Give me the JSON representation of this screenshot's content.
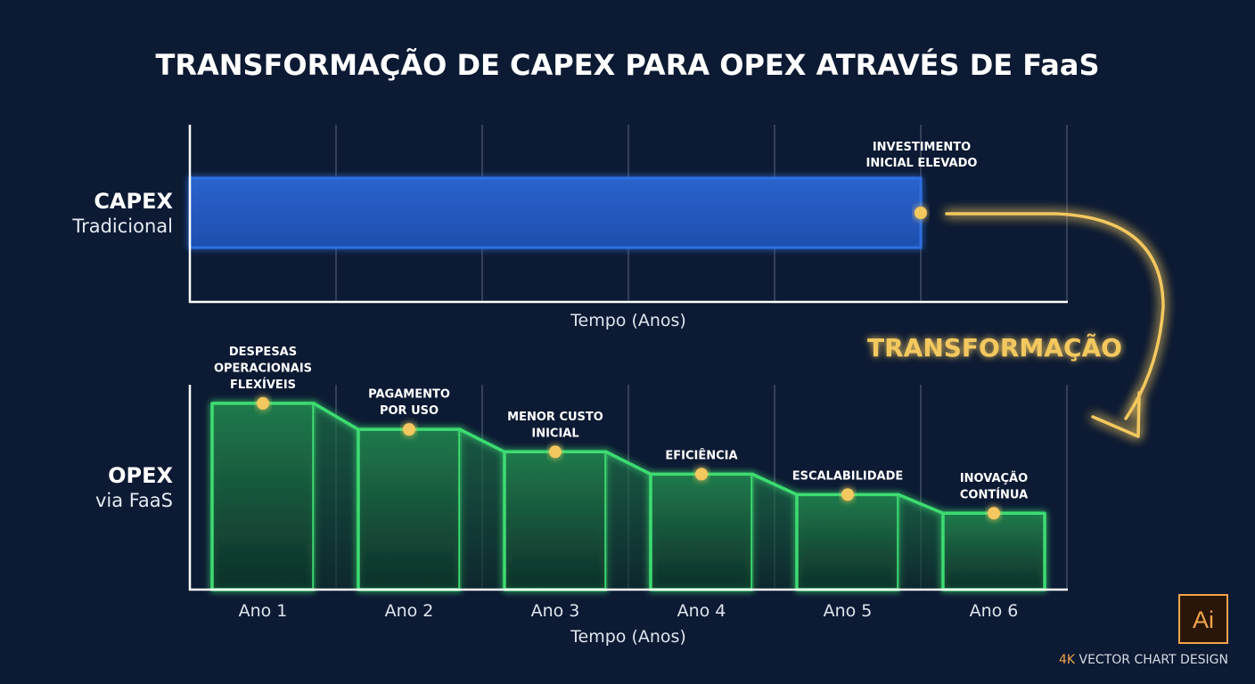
{
  "title": "TRANSFORMAÇÃO DE CAPEX PARA OPEX ATRAVÉS DE FaaS",
  "capex": {
    "label_main": "CAPEX",
    "label_sub": "Tradicional",
    "annotation": [
      "INVESTIMENTO",
      "INICIAL ELEVADO"
    ],
    "xlabel": "Tempo (Anos)"
  },
  "transformation_label": "TRANSFORMAÇÃO",
  "opex": {
    "label_main": "OPEX",
    "label_sub": "via FaaS",
    "xlabel": "Tempo (Anos)"
  },
  "footer": {
    "accent": "4K",
    "text": " VECTOR CHART DESIGN",
    "logo_text": "Ai"
  },
  "colors": {
    "background": "#0c1a33",
    "capex_bar": "#2f6fe0",
    "opex_step": "#3ddc72",
    "highlight": "#f3c85f",
    "logo_orange": "#f2a44a"
  },
  "chart_data": [
    {
      "type": "bar",
      "orientation": "horizontal",
      "categories": [
        "CAPEX Tradicional"
      ],
      "values": [
        5
      ],
      "xlabel": "Tempo (Anos)",
      "xlim": [
        0,
        6
      ],
      "annotation": "INVESTIMENTO INICIAL ELEVADO",
      "grid": true
    },
    {
      "type": "bar",
      "categories": [
        "Ano 1",
        "Ano 2",
        "Ano 3",
        "Ano 4",
        "Ano 5",
        "Ano 6"
      ],
      "values": [
        100,
        86,
        74,
        62,
        51,
        41
      ],
      "annotations": [
        [
          "DESPESAS",
          "OPERACIONAIS",
          "FLEXÍVEIS"
        ],
        [
          "PAGAMENTO",
          "POR USO"
        ],
        [
          "MENOR CUSTO",
          "INICIAL"
        ],
        [
          "EFICIÊNCIA"
        ],
        [
          "ESCALABILIDADE"
        ],
        [
          "INOVAÇÃO",
          "CONTÍNUA"
        ]
      ],
      "xlabel": "Tempo (Anos)",
      "ylim": [
        0,
        110
      ],
      "grid": true
    }
  ]
}
